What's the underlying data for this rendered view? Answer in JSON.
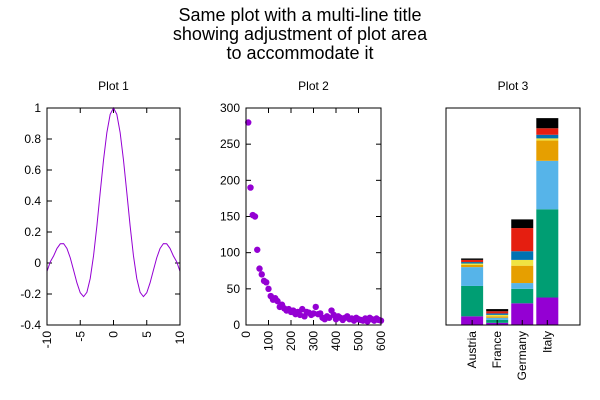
{
  "figure": {
    "title_lines": [
      "Same plot with a multi-line title",
      "showing adjustment of plot area",
      "to accommodate it"
    ]
  },
  "chart_data": [
    {
      "type": "line",
      "title": "Plot 1",
      "xlabel": "",
      "ylabel": "",
      "xlim": [
        -10,
        10
      ],
      "ylim": [
        -0.4,
        1
      ],
      "x_ticks": [
        -10,
        -5,
        0,
        5,
        10
      ],
      "y_ticks": [
        -0.4,
        -0.2,
        0,
        0.2,
        0.4,
        0.6,
        0.8,
        1
      ],
      "x_tick_labels": [
        "-10",
        "-5",
        "0",
        "5",
        "10"
      ],
      "y_tick_labels": [
        "-0.4",
        "-0.2",
        "0",
        "0.2",
        "0.4",
        "0.6",
        "0.8",
        "1"
      ],
      "series": [
        {
          "color": "#9400d3",
          "x": [
            -10,
            -9.5,
            -9,
            -8.5,
            -8,
            -7.5,
            -7,
            -6.5,
            -6,
            -5.5,
            -5,
            -4.5,
            -4,
            -3.5,
            -3,
            -2.5,
            -2,
            -1.5,
            -1,
            -0.5,
            0,
            0.5,
            1,
            1.5,
            2,
            2.5,
            3,
            3.5,
            4,
            4.5,
            5,
            5.5,
            6,
            6.5,
            7,
            7.5,
            8,
            8.5,
            9,
            9.5,
            10
          ],
          "y": [
            -0.054,
            0.008,
            0.046,
            0.094,
            0.124,
            0.125,
            0.094,
            0.033,
            -0.047,
            -0.128,
            -0.192,
            -0.217,
            -0.189,
            -0.1,
            0.047,
            0.239,
            0.455,
            0.665,
            0.841,
            0.959,
            1,
            0.959,
            0.841,
            0.665,
            0.455,
            0.239,
            0.047,
            -0.1,
            -0.189,
            -0.217,
            -0.192,
            -0.128,
            -0.047,
            0.033,
            0.094,
            0.125,
            0.124,
            0.094,
            0.046,
            0.008,
            -0.054
          ]
        }
      ],
      "grid": false,
      "legend": "none"
    },
    {
      "type": "scatter",
      "title": "Plot 2",
      "xlabel": "",
      "ylabel": "",
      "xlim": [
        0,
        600
      ],
      "ylim": [
        0,
        300
      ],
      "x_ticks": [
        0,
        100,
        200,
        300,
        400,
        500,
        600
      ],
      "y_ticks": [
        0,
        50,
        100,
        150,
        200,
        250,
        300
      ],
      "x_tick_labels": [
        "0",
        "100",
        "200",
        "300",
        "400",
        "500",
        "600"
      ],
      "y_tick_labels": [
        "0",
        "50",
        "100",
        "150",
        "200",
        "250",
        "300"
      ],
      "series": [
        {
          "color": "#9400d3",
          "x": [
            10,
            20,
            30,
            40,
            50,
            60,
            70,
            80,
            90,
            100,
            110,
            120,
            130,
            140,
            150,
            160,
            170,
            180,
            190,
            200,
            210,
            220,
            230,
            240,
            250,
            260,
            270,
            280,
            290,
            300,
            310,
            320,
            330,
            340,
            350,
            360,
            370,
            380,
            390,
            400,
            410,
            420,
            430,
            440,
            450,
            460,
            470,
            480,
            490,
            500,
            510,
            520,
            530,
            540,
            550,
            560,
            570,
            580,
            590,
            600
          ],
          "y": [
            280,
            190,
            152,
            150,
            104,
            78,
            70,
            61,
            59,
            50,
            40,
            35,
            37,
            33,
            25,
            28,
            23,
            20,
            22,
            18,
            20,
            15,
            18,
            14,
            22,
            12,
            18,
            17,
            14,
            16,
            25,
            15,
            16,
            10,
            8,
            12,
            10,
            20,
            14,
            8,
            12,
            10,
            7,
            10,
            12,
            8,
            9,
            6,
            10,
            8,
            7,
            6,
            9,
            5,
            10,
            8,
            6,
            9,
            7,
            6
          ]
        }
      ],
      "grid": false,
      "legend": "none"
    },
    {
      "type": "bar",
      "stacked": true,
      "title": "Plot 3",
      "xlabel": "",
      "ylabel": "",
      "categories": [
        "Austria",
        "France",
        "Germany",
        "Italy"
      ],
      "ylim": [
        0,
        300
      ],
      "y_ticks": [],
      "series": [
        {
          "color": "#9400d3",
          "values": [
            12,
            3,
            30,
            38
          ]
        },
        {
          "color": "#009e73",
          "values": [
            42,
            4,
            20,
            122
          ]
        },
        {
          "color": "#56b4e9",
          "values": [
            26,
            3,
            8,
            67
          ]
        },
        {
          "color": "#e69f00",
          "values": [
            3,
            2,
            24,
            28
          ]
        },
        {
          "color": "#f0e442",
          "values": [
            2,
            2,
            8,
            3
          ]
        },
        {
          "color": "#0072b2",
          "values": [
            2,
            2,
            12,
            5
          ]
        },
        {
          "color": "#e51e10",
          "values": [
            3,
            3,
            32,
            9
          ]
        },
        {
          "color": "#000000",
          "values": [
            2,
            3,
            12,
            14
          ]
        }
      ],
      "grid": false,
      "legend": "none"
    }
  ]
}
